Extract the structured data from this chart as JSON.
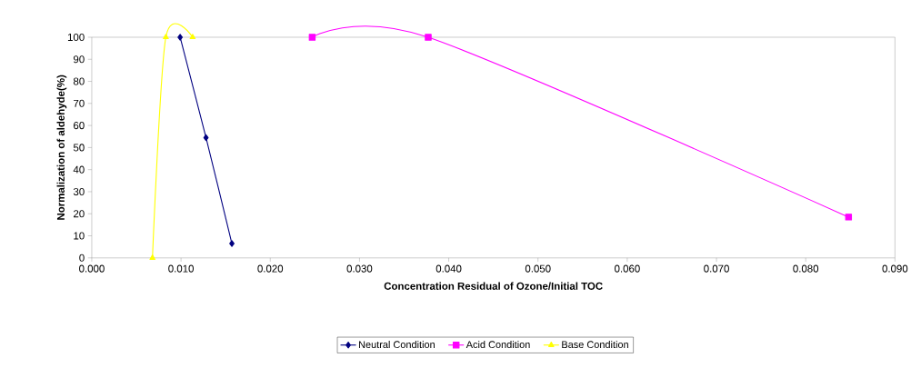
{
  "chart_data": {
    "type": "line",
    "xlabel": "Concentration Residual of Ozone/Initial TOC",
    "ylabel": "Normalization of aldehyde(%)",
    "series": [
      {
        "name": "Neutral Condition",
        "color": "#000080",
        "marker": "diamond",
        "x": [
          0.0099,
          0.0128,
          0.0157
        ],
        "values": [
          100,
          54.5,
          6.5
        ]
      },
      {
        "name": "Acid Condition",
        "color": "#ff00ff",
        "marker": "square",
        "x": [
          0.0247,
          0.0377,
          0.0848
        ],
        "values": [
          100,
          100,
          18.5
        ]
      },
      {
        "name": "Base Condition",
        "color": "#ffff00",
        "marker": "triangle",
        "x": [
          0.0068,
          0.0083,
          0.0113
        ],
        "values": [
          0,
          100,
          100
        ]
      }
    ],
    "xlim": [
      0,
      0.09
    ],
    "ylim": [
      0,
      100
    ],
    "xticks": [
      {
        "value": 0,
        "label": "0.000"
      },
      {
        "value": 0.01,
        "label": "0.010"
      },
      {
        "value": 0.02,
        "label": "0.020"
      },
      {
        "value": 0.03,
        "label": "0.030"
      },
      {
        "value": 0.04,
        "label": "0.040"
      },
      {
        "value": 0.05,
        "label": "0.050"
      },
      {
        "value": 0.06,
        "label": "0.060"
      },
      {
        "value": 0.07,
        "label": "0.070"
      },
      {
        "value": 0.08,
        "label": "0.080"
      },
      {
        "value": 0.09,
        "label": "0.090"
      }
    ],
    "yticks": [
      0,
      10,
      20,
      30,
      40,
      50,
      60,
      70,
      80,
      90,
      100
    ],
    "legend": "bottom",
    "grid": false
  }
}
